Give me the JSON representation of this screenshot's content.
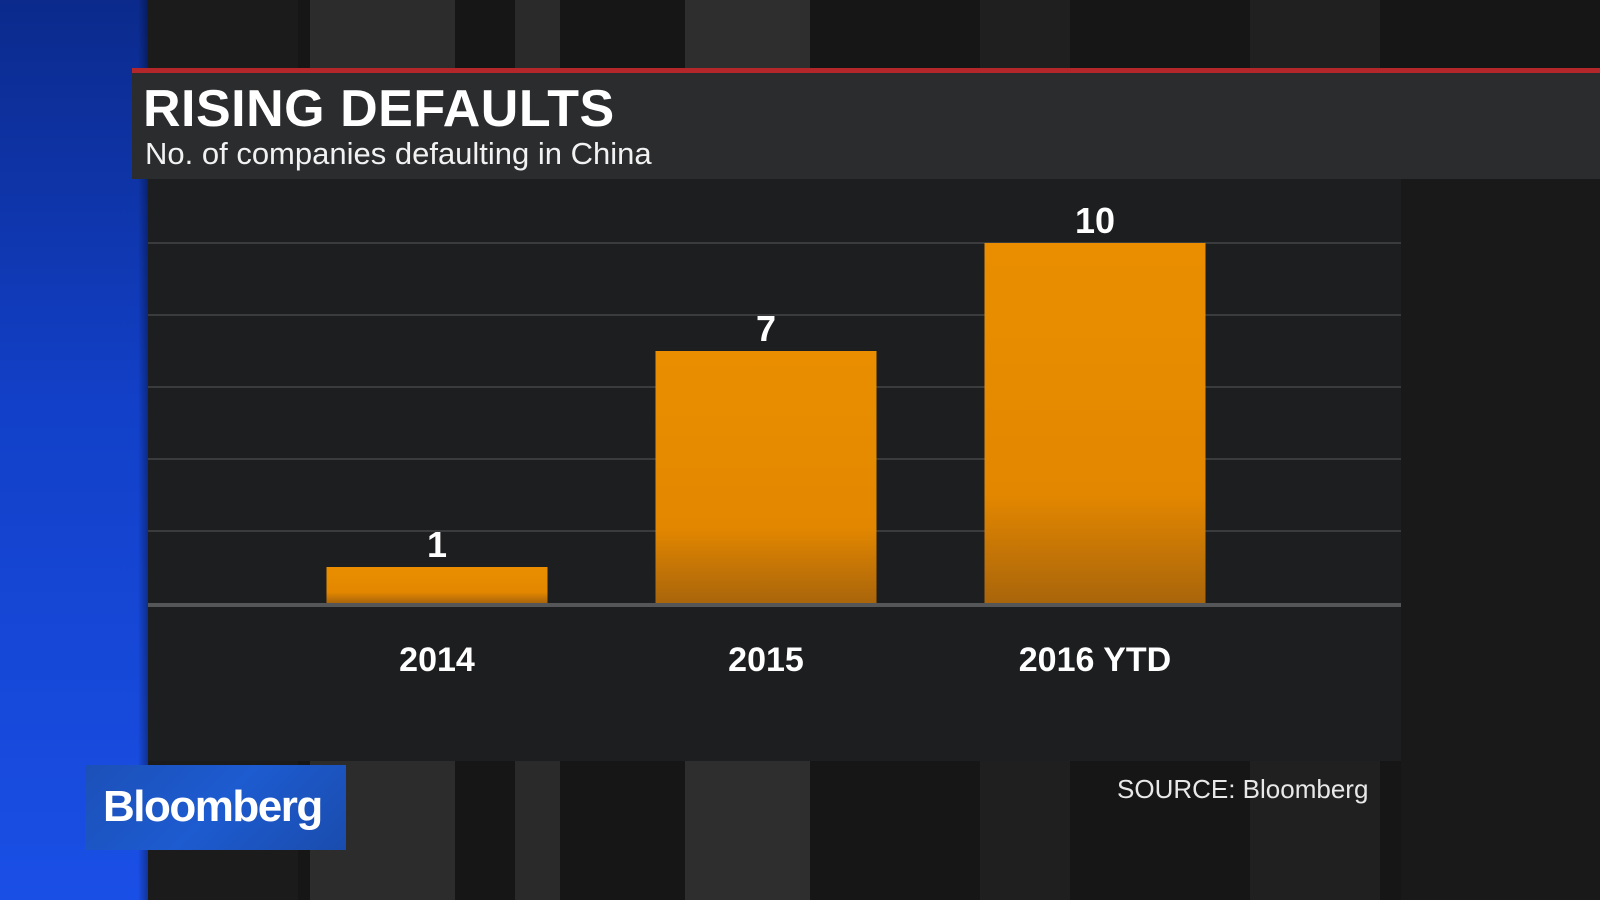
{
  "header": {
    "title": "RISING DEFAULTS",
    "subtitle": "No. of companies defaulting in China"
  },
  "footer": {
    "logo_text": "Bloomberg",
    "source": "SOURCE: Bloomberg"
  },
  "colors": {
    "bar": "#e98c00",
    "accent_red": "#b3262a",
    "brand_blue": "#1a4fe6"
  },
  "chart_data": {
    "type": "bar",
    "title": "RISING DEFAULTS",
    "subtitle": "No. of companies defaulting in China",
    "categories": [
      "2014",
      "2015",
      "2016 YTD"
    ],
    "values": [
      1,
      7,
      10
    ],
    "data_labels": [
      "1",
      "7",
      "10"
    ],
    "xlabel": "",
    "ylabel": "",
    "ylim": [
      0,
      12
    ],
    "grid": true,
    "legend": "none"
  }
}
